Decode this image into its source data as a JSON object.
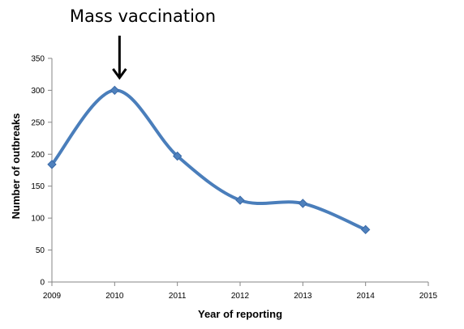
{
  "chart_data": {
    "type": "line",
    "title": "",
    "xlabel": "Year of reporting",
    "ylabel": "Number of outbreaks",
    "xlim": [
      2009,
      2015
    ],
    "ylim": [
      0,
      350
    ],
    "x_ticks": [
      "2009",
      "2010",
      "2011",
      "2012",
      "2013",
      "2014",
      "2015"
    ],
    "y_ticks": [
      "0",
      "50",
      "100",
      "150",
      "200",
      "250",
      "300",
      "350"
    ],
    "grid": false,
    "legend": "none",
    "smooth": true,
    "marker": "diamond",
    "series": [
      {
        "x": [
          2009,
          2010,
          2011,
          2012,
          2013,
          2014
        ],
        "values": [
          184,
          300,
          197,
          128,
          123,
          82
        ],
        "color": "#4a7ebb"
      }
    ],
    "annotations": [
      {
        "text": "Mass vaccination",
        "x": 2010,
        "marker": "arrow-down"
      }
    ]
  }
}
